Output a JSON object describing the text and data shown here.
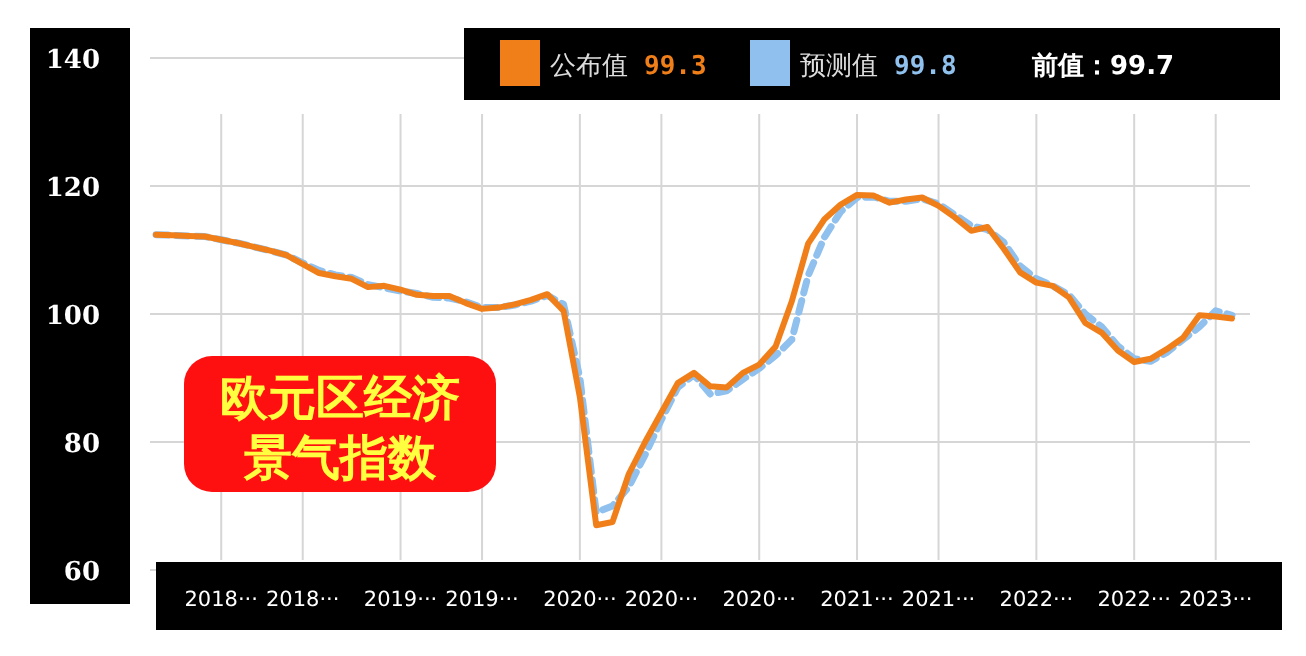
{
  "chart_data": {
    "type": "line",
    "title": "欧元区经济景气指数",
    "categories": [
      null,
      null,
      null,
      null,
      "2018···",
      null,
      null,
      null,
      null,
      "2018···",
      null,
      null,
      null,
      null,
      null,
      "2019···",
      null,
      null,
      null,
      null,
      "2019···",
      null,
      null,
      null,
      null,
      null,
      "2020···",
      null,
      null,
      null,
      null,
      "2020···",
      null,
      null,
      null,
      null,
      null,
      "2020···",
      null,
      null,
      null,
      null,
      null,
      "2021···",
      null,
      null,
      null,
      null,
      "2021···",
      null,
      null,
      null,
      null,
      null,
      "2022···",
      null,
      null,
      null,
      null,
      null,
      "2022···",
      null,
      null,
      null,
      null,
      "2023···",
      null
    ],
    "series": [
      {
        "name": "公布值",
        "color": "#f07f1a",
        "line_style": "solid",
        "values": [
          112.4,
          112.3,
          112.2,
          112.1,
          111.6,
          111.1,
          110.5,
          109.9,
          109.2,
          107.8,
          106.4,
          105.9,
          105.5,
          104.2,
          104.4,
          103.8,
          103.0,
          102.8,
          102.8,
          101.7,
          100.8,
          101.0,
          101.5,
          102.2,
          103.1,
          100.5,
          87,
          67,
          67.5,
          75,
          80,
          84.6,
          89.2,
          90.8,
          88.7,
          88.5,
          90.8,
          92.1,
          94.9,
          102,
          111.0,
          114.8,
          117.1,
          118.6,
          118.5,
          117.4,
          117.9,
          118.2,
          116.9,
          115.1,
          113.0,
          113.6,
          110.2,
          106.5,
          104.9,
          104.4,
          102.6,
          98.6,
          97.1,
          94.3,
          92.5,
          93.0,
          94.5,
          96.3,
          99.8,
          99.6,
          99.3
        ]
      },
      {
        "name": "预测值",
        "color": "#8fc0ee",
        "line_style": "dashed",
        "values": [
          112.4,
          112.3,
          112.2,
          112.1,
          111.6,
          111.1,
          110.5,
          109.9,
          109.2,
          108.0,
          106.8,
          106.1,
          105.7,
          104.6,
          104.1,
          103.6,
          103.2,
          102.6,
          102.5,
          101.9,
          101.0,
          101.0,
          101.4,
          102.0,
          102.9,
          101.5,
          90,
          69,
          70,
          73,
          78,
          83.5,
          88.5,
          90.5,
          87.5,
          88,
          89.8,
          91.5,
          93.5,
          96,
          106,
          112,
          116,
          118.2,
          118.3,
          117.6,
          117.6,
          118.0,
          117.2,
          115.5,
          113.8,
          113.2,
          111.2,
          107.5,
          105.5,
          104.4,
          103.0,
          100,
          98,
          95,
          93,
          92.6,
          94.0,
          96.0,
          98,
          100.5,
          99.8
        ]
      }
    ],
    "ylim": [
      60,
      140
    ],
    "yticks": [
      60,
      80,
      100,
      120,
      140
    ],
    "grid": true,
    "legend": "top",
    "annotations": [
      "99.3",
      "99.8",
      "前值：99.7"
    ]
  }
}
